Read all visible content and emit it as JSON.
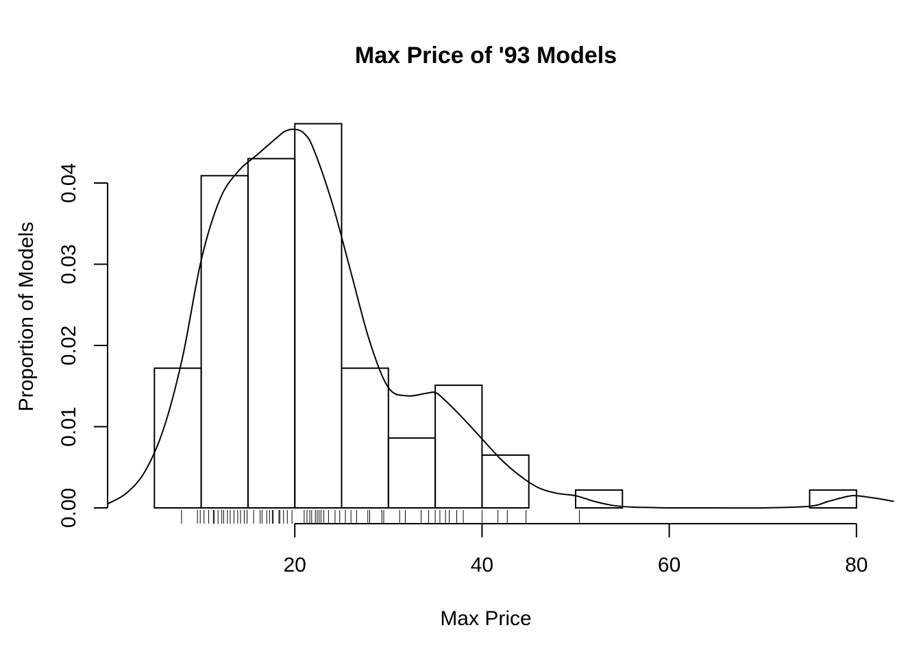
{
  "chart_data": {
    "type": "bar",
    "title": "Max Price of '93 Models",
    "xlabel": "Max Price",
    "ylabel": "Proportion of Models",
    "xlim": [
      0,
      84
    ],
    "ylim": [
      0,
      0.05
    ],
    "xticks": [
      20,
      40,
      60,
      80
    ],
    "xtick_labels": [
      "20",
      "40",
      "60",
      "80"
    ],
    "yticks": [
      0,
      0.01,
      0.02,
      0.03,
      0.04
    ],
    "ytick_labels": [
      "0.00",
      "0.01",
      "0.02",
      "0.03",
      "0.04"
    ],
    "grid": false,
    "histogram": {
      "bin_edges": [
        5,
        10,
        15,
        20,
        25,
        30,
        35,
        40,
        45,
        50,
        55,
        60,
        65,
        70,
        75,
        80
      ],
      "density": [
        0.0172,
        0.0409,
        0.043,
        0.0473,
        0.0172,
        0.0086,
        0.0151,
        0.0065,
        0.0,
        0.0022,
        0.0,
        0.0,
        0.0,
        0.0,
        0.0022
      ]
    },
    "density_curve": {
      "x": [
        0,
        2,
        4,
        6,
        8,
        10,
        12,
        14,
        16,
        18,
        19,
        20,
        21,
        22,
        24,
        26,
        28,
        30,
        32,
        34,
        35,
        36,
        38,
        40,
        42,
        44,
        46,
        48,
        50,
        52,
        54,
        56,
        58,
        60,
        65,
        70,
        75,
        77,
        79,
        80,
        82,
        84
      ],
      "y": [
        0.0005,
        0.0018,
        0.0045,
        0.0098,
        0.0185,
        0.0305,
        0.038,
        0.0415,
        0.0435,
        0.0455,
        0.0464,
        0.0466,
        0.0461,
        0.0442,
        0.0375,
        0.029,
        0.0205,
        0.0148,
        0.0138,
        0.0141,
        0.0142,
        0.0133,
        0.011,
        0.0085,
        0.006,
        0.004,
        0.0025,
        0.0018,
        0.0015,
        0.0008,
        0.0003,
        0.0001,
        5e-05,
        0.0,
        0.0,
        0.0,
        0.0002,
        0.0008,
        0.0014,
        0.0015,
        0.0012,
        0.0008
      ]
    },
    "rug": [
      7.9,
      9.6,
      9.9,
      10.3,
      10.8,
      11.3,
      11.4,
      11.8,
      12.2,
      12.4,
      12.8,
      13.1,
      13.5,
      13.9,
      14.2,
      14.6,
      14.9,
      15.6,
      16.3,
      16.5,
      17.0,
      17.3,
      17.6,
      17.7,
      18.3,
      18.4,
      18.8,
      19.2,
      19.7,
      21.0,
      21.3,
      21.6,
      21.8,
      22.2,
      22.4,
      22.6,
      22.8,
      23.1,
      23.6,
      24.3,
      24.8,
      25.4,
      26.0,
      26.6,
      27.8,
      28.0,
      29.3,
      29.5,
      31.2,
      31.8,
      33.5,
      34.3,
      35.0,
      35.5,
      36.1,
      36.5,
      37.3,
      38.0,
      40.0,
      41.7,
      42.7,
      44.7,
      50.4
    ]
  }
}
